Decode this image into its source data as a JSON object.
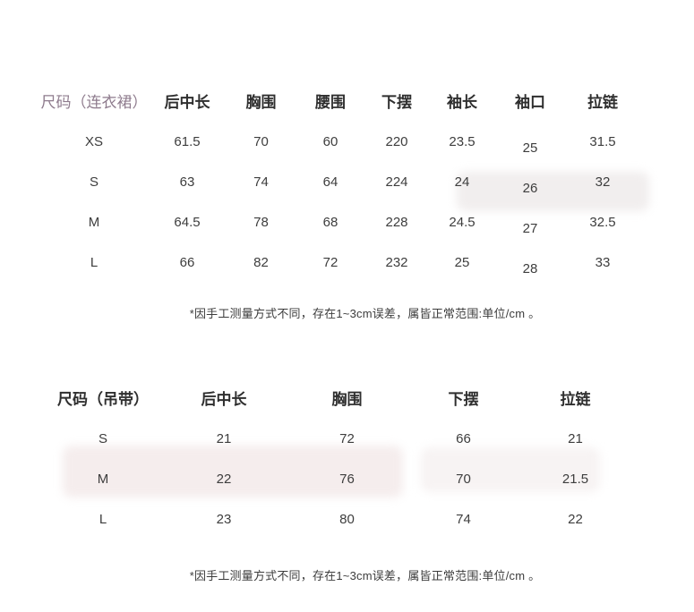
{
  "dress_table": {
    "headers": {
      "size": "尺码（连衣裙）",
      "back_length": "后中长",
      "bust": "胸围",
      "waist": "腰围",
      "hem": "下摆",
      "sleeve_length": "袖长",
      "cuff": "袖口",
      "zipper": "拉链"
    },
    "rows": [
      {
        "size": "XS",
        "back_length": "61.5",
        "bust": "70",
        "waist": "60",
        "hem": "220",
        "sleeve_length": "23.5",
        "cuff": "25",
        "zipper": "31.5"
      },
      {
        "size": "S",
        "back_length": "63",
        "bust": "74",
        "waist": "64",
        "hem": "224",
        "sleeve_length": "24",
        "cuff": "26",
        "zipper": "32"
      },
      {
        "size": "M",
        "back_length": "64.5",
        "bust": "78",
        "waist": "68",
        "hem": "228",
        "sleeve_length": "24.5",
        "cuff": "27",
        "zipper": "32.5"
      },
      {
        "size": "L",
        "back_length": "66",
        "bust": "82",
        "waist": "72",
        "hem": "232",
        "sleeve_length": "25",
        "cuff": "28",
        "zipper": "33"
      }
    ],
    "footnote": "*因手工测量方式不同，存在1~3cm误差，属皆正常范围:单位/cm 。"
  },
  "cami_table": {
    "headers": {
      "size": "尺码（吊带）",
      "back_length": "后中长",
      "bust": "胸围",
      "hem": "下摆",
      "zipper": "拉链"
    },
    "rows": [
      {
        "size": "S",
        "back_length": "21",
        "bust": "72",
        "hem": "66",
        "zipper": "21"
      },
      {
        "size": "M",
        "back_length": "22",
        "bust": "76",
        "hem": "70",
        "zipper": "21.5"
      },
      {
        "size": "L",
        "back_length": "23",
        "bust": "80",
        "hem": "74",
        "zipper": "22"
      }
    ],
    "footnote": "*因手工测量方式不同，存在1~3cm误差，属皆正常范围:单位/cm 。"
  },
  "colors": {
    "background": "#ffffff",
    "size_header_accent": "#8e7b8d",
    "header_text": "#2f2f2f",
    "value_text": "#3d3d3d",
    "footnote_text": "#3c3c3c"
  }
}
